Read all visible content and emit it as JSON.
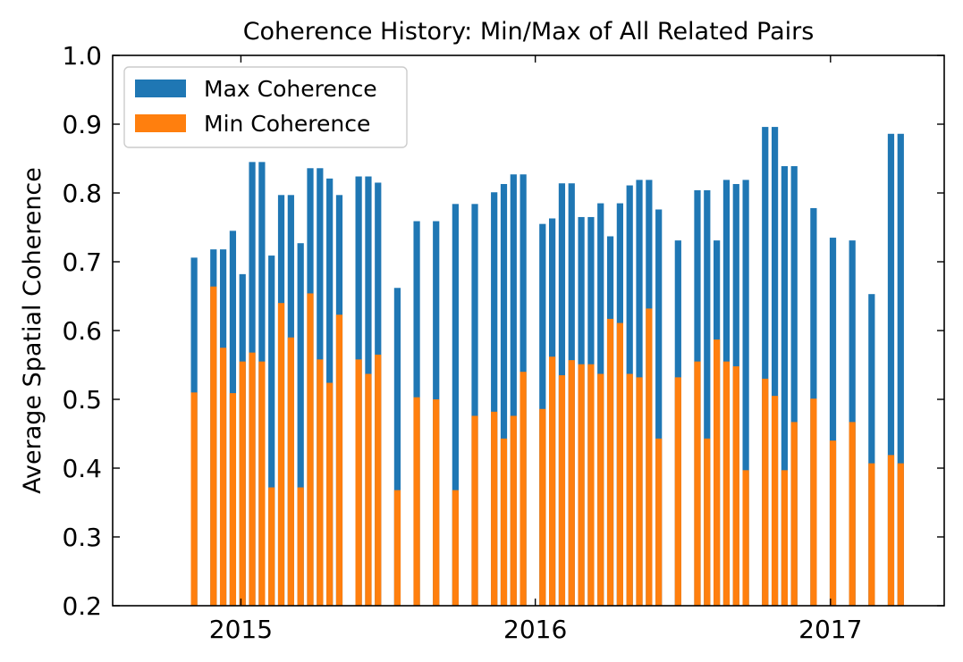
{
  "chart_data": {
    "type": "bar",
    "title": "Coherence History: Min/Max of All Related Pairs",
    "xlabel": "",
    "ylabel": "Average Spatial Coherence",
    "ylim": [
      0.2,
      1.0
    ],
    "yticks": [
      "0.2",
      "0.3",
      "0.4",
      "0.5",
      "0.6",
      "0.7",
      "0.8",
      "0.9",
      "1.0"
    ],
    "xlim": [
      "2014-07-26",
      "2017-05-22"
    ],
    "xticks": [
      {
        "date": "2015-01-01",
        "label": "2015"
      },
      {
        "date": "2016-01-01",
        "label": "2016"
      },
      {
        "date": "2017-01-01",
        "label": "2017"
      }
    ],
    "bar_width_days": 8,
    "legend_position": "upper-left",
    "grid": false,
    "colors": {
      "max": "#1f77b4",
      "min": "#ff7f0e"
    },
    "series": [
      {
        "name": "Max Coherence",
        "points": [
          [
            "2014-11-04",
            0.706
          ],
          [
            "2014-11-28",
            0.718
          ],
          [
            "2014-12-10",
            0.718
          ],
          [
            "2014-12-22",
            0.745
          ],
          [
            "2015-01-03",
            0.682
          ],
          [
            "2015-01-15",
            0.845
          ],
          [
            "2015-01-27",
            0.845
          ],
          [
            "2015-02-08",
            0.709
          ],
          [
            "2015-02-20",
            0.797
          ],
          [
            "2015-03-04",
            0.797
          ],
          [
            "2015-03-16",
            0.727
          ],
          [
            "2015-03-28",
            0.836
          ],
          [
            "2015-04-09",
            0.836
          ],
          [
            "2015-04-21",
            0.821
          ],
          [
            "2015-05-03",
            0.797
          ],
          [
            "2015-05-27",
            0.824
          ],
          [
            "2015-06-08",
            0.824
          ],
          [
            "2015-06-20",
            0.815
          ],
          [
            "2015-07-14",
            0.662
          ],
          [
            "2015-08-07",
            0.759
          ],
          [
            "2015-08-31",
            0.759
          ],
          [
            "2015-09-24",
            0.784
          ],
          [
            "2015-10-18",
            0.784
          ],
          [
            "2015-11-11",
            0.801
          ],
          [
            "2015-11-23",
            0.813
          ],
          [
            "2015-12-05",
            0.827
          ],
          [
            "2015-12-17",
            0.827
          ],
          [
            "2016-01-10",
            0.755
          ],
          [
            "2016-01-22",
            0.763
          ],
          [
            "2016-02-03",
            0.814
          ],
          [
            "2016-02-15",
            0.814
          ],
          [
            "2016-02-27",
            0.765
          ],
          [
            "2016-03-10",
            0.765
          ],
          [
            "2016-03-22",
            0.785
          ],
          [
            "2016-04-03",
            0.737
          ],
          [
            "2016-04-15",
            0.785
          ],
          [
            "2016-04-27",
            0.811
          ],
          [
            "2016-05-09",
            0.819
          ],
          [
            "2016-05-21",
            0.819
          ],
          [
            "2016-06-02",
            0.776
          ],
          [
            "2016-06-26",
            0.731
          ],
          [
            "2016-07-20",
            0.804
          ],
          [
            "2016-08-01",
            0.804
          ],
          [
            "2016-08-13",
            0.731
          ],
          [
            "2016-08-25",
            0.819
          ],
          [
            "2016-09-06",
            0.813
          ],
          [
            "2016-09-18",
            0.819
          ],
          [
            "2016-10-12",
            0.896
          ],
          [
            "2016-10-24",
            0.896
          ],
          [
            "2016-11-05",
            0.839
          ],
          [
            "2016-11-17",
            0.839
          ],
          [
            "2016-12-11",
            0.778
          ],
          [
            "2017-01-04",
            0.735
          ],
          [
            "2017-01-28",
            0.731
          ],
          [
            "2017-02-21",
            0.653
          ],
          [
            "2017-03-17",
            0.886
          ],
          [
            "2017-03-29",
            0.886
          ]
        ]
      },
      {
        "name": "Min Coherence",
        "points": [
          [
            "2014-11-04",
            0.51
          ],
          [
            "2014-11-28",
            0.664
          ],
          [
            "2014-12-10",
            0.575
          ],
          [
            "2014-12-22",
            0.509
          ],
          [
            "2015-01-03",
            0.555
          ],
          [
            "2015-01-15",
            0.568
          ],
          [
            "2015-01-27",
            0.555
          ],
          [
            "2015-02-08",
            0.372
          ],
          [
            "2015-02-20",
            0.64
          ],
          [
            "2015-03-04",
            0.59
          ],
          [
            "2015-03-16",
            0.372
          ],
          [
            "2015-03-28",
            0.654
          ],
          [
            "2015-04-09",
            0.558
          ],
          [
            "2015-04-21",
            0.524
          ],
          [
            "2015-05-03",
            0.623
          ],
          [
            "2015-05-27",
            0.558
          ],
          [
            "2015-06-08",
            0.537
          ],
          [
            "2015-06-20",
            0.565
          ],
          [
            "2015-07-14",
            0.368
          ],
          [
            "2015-08-07",
            0.503
          ],
          [
            "2015-08-31",
            0.5
          ],
          [
            "2015-09-24",
            0.368
          ],
          [
            "2015-10-18",
            0.476
          ],
          [
            "2015-11-11",
            0.482
          ],
          [
            "2015-11-23",
            0.443
          ],
          [
            "2015-12-05",
            0.476
          ],
          [
            "2015-12-17",
            0.54
          ],
          [
            "2016-01-10",
            0.486
          ],
          [
            "2016-01-22",
            0.562
          ],
          [
            "2016-02-03",
            0.535
          ],
          [
            "2016-02-15",
            0.557
          ],
          [
            "2016-02-27",
            0.551
          ],
          [
            "2016-03-10",
            0.551
          ],
          [
            "2016-03-22",
            0.537
          ],
          [
            "2016-04-03",
            0.617
          ],
          [
            "2016-04-15",
            0.611
          ],
          [
            "2016-04-27",
            0.537
          ],
          [
            "2016-05-09",
            0.532
          ],
          [
            "2016-05-21",
            0.632
          ],
          [
            "2016-06-02",
            0.443
          ],
          [
            "2016-06-26",
            0.532
          ],
          [
            "2016-07-20",
            0.555
          ],
          [
            "2016-08-01",
            0.443
          ],
          [
            "2016-08-13",
            0.587
          ],
          [
            "2016-08-25",
            0.555
          ],
          [
            "2016-09-06",
            0.548
          ],
          [
            "2016-09-18",
            0.397
          ],
          [
            "2016-10-12",
            0.53
          ],
          [
            "2016-10-24",
            0.505
          ],
          [
            "2016-11-05",
            0.397
          ],
          [
            "2016-11-17",
            0.467
          ],
          [
            "2016-12-11",
            0.501
          ],
          [
            "2017-01-04",
            0.44
          ],
          [
            "2017-01-28",
            0.467
          ],
          [
            "2017-02-21",
            0.407
          ],
          [
            "2017-03-17",
            0.419
          ],
          [
            "2017-03-29",
            0.407
          ]
        ]
      }
    ]
  }
}
